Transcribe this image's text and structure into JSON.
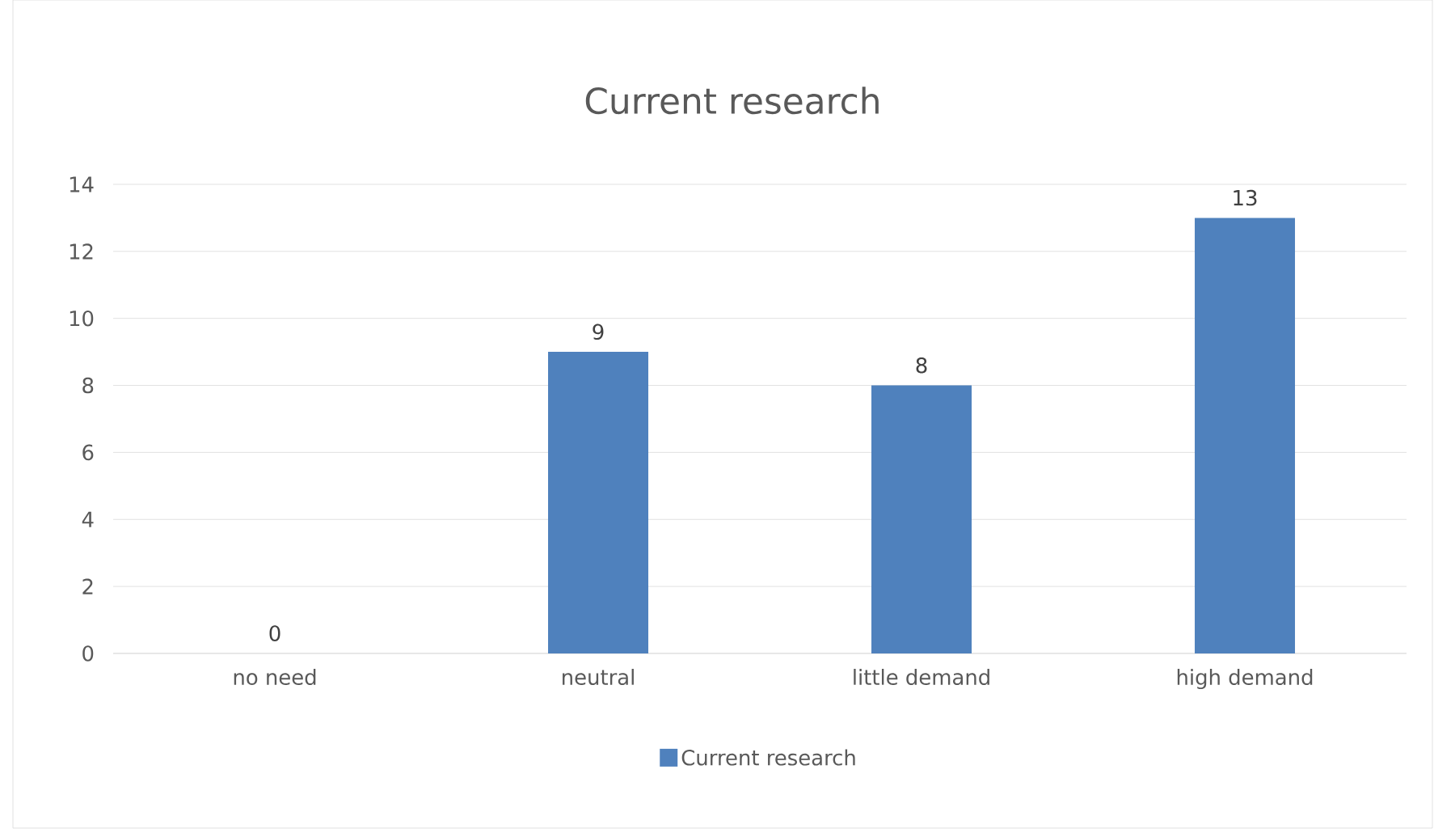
{
  "chart_data": {
    "type": "bar",
    "title": "Current research",
    "categories": [
      "no need",
      "neutral",
      "little demand",
      "high demand"
    ],
    "series": [
      {
        "name": "Current research",
        "color": "#4f81bd",
        "values": [
          0,
          9,
          8,
          13
        ]
      }
    ],
    "ylim": [
      0,
      14
    ],
    "yticks": [
      0,
      2,
      4,
      6,
      8,
      10,
      12,
      14
    ],
    "grid": "y",
    "legend": "bottom",
    "data_labels": true
  }
}
